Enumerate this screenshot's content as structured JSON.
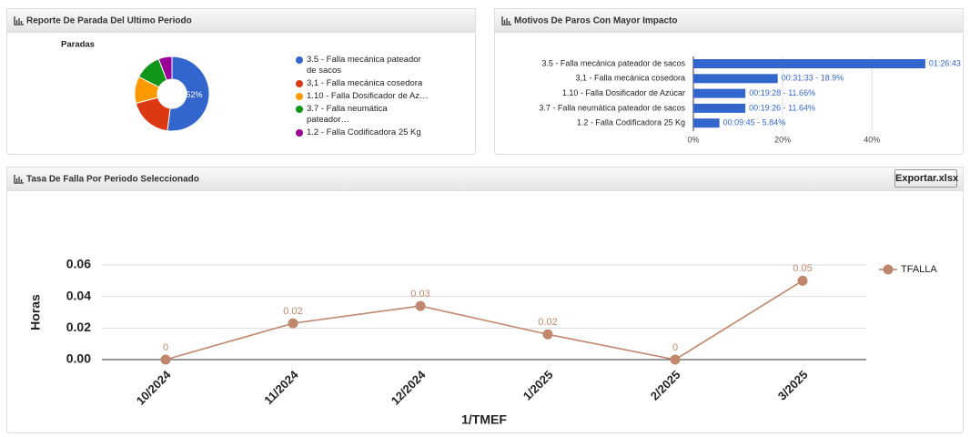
{
  "chart_data": [
    {
      "type": "pie",
      "panel_title": "Reporte De Parada Del Ultimo Periodo",
      "title": "Paradas",
      "categories": [
        "3.5 - Falla mecánica pateador de sacos",
        "3,1 - Falla mecánica cosedora",
        "1.10 - Falla Dosificador de Az…",
        "3.7 - Falla neumática pateador…",
        "1.2 - Falla Codificadora 25 Kg"
      ],
      "values": [
        51.96,
        18.9,
        11.66,
        11.64,
        5.84
      ],
      "value_labels": [
        "52%",
        null,
        null,
        null,
        null
      ],
      "colors": [
        "#3366cc",
        "#dc3912",
        "#ff9900",
        "#109618",
        "#990099"
      ]
    },
    {
      "type": "hbar",
      "panel_title": "Motivos De Paros Con Mayor Impacto",
      "categories": [
        "3.5 - Falla mecánica pateador de sacos",
        "3,1 - Falla mecánica cosedora",
        "1.10 - Falla Dosificador de Azúcar",
        "3.7 - Falla neumática pateador de sacos",
        "1.2 - Falla Codificadora 25 Kg"
      ],
      "values": [
        51.96,
        18.9,
        11.66,
        11.64,
        5.84
      ],
      "value_labels": [
        "01:26:43",
        "00:31:33 - 18.9%",
        "00:19:28 - 11.66%",
        "00:19:26 - 11.64%",
        "00:09:45 - 5.84%"
      ],
      "color": "#3366cc",
      "xlim": [
        0,
        60
      ],
      "xticks": [
        {
          "value": 0,
          "label": "0%"
        },
        {
          "value": 20,
          "label": "20%"
        },
        {
          "value": 40,
          "label": "40%"
        }
      ],
      "grid": true
    },
    {
      "type": "line",
      "panel_title": "Tasa De Falla Por Periodo Seleccionado",
      "categories": [
        "10/2024",
        "11/2024",
        "12/2024",
        "1/2025",
        "2/2025",
        "3/2025"
      ],
      "series": [
        {
          "name": "TFALLA",
          "color": "#c0876c",
          "values": [
            0,
            0.023,
            0.034,
            0.016,
            0,
            0.05
          ],
          "value_labels": [
            "0",
            "0.02",
            "0.03",
            "0.02",
            "0",
            "0.05"
          ]
        }
      ],
      "x_label": "1/TMEF",
      "y_label": "Horas",
      "ylim": [
        0,
        0.06
      ],
      "yticks": [
        {
          "value": 0,
          "label": "0.00"
        },
        {
          "value": 0.02,
          "label": "0.02"
        },
        {
          "value": 0.04,
          "label": "0.04"
        },
        {
          "value": 0.06,
          "label": "0.06"
        }
      ],
      "grid": true,
      "legend": "right"
    }
  ],
  "export_button": "Exportar.xlsx"
}
